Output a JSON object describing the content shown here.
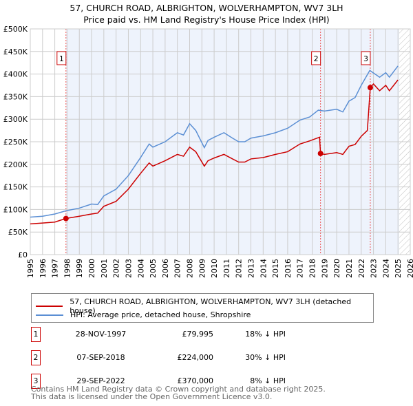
{
  "chart_data": {
    "type": "line",
    "title": "57, CHURCH ROAD, ALBRIGHTON, WOLVERHAMPTON, WV7 3LH",
    "subtitle": "Price paid vs. HM Land Registry's House Price Index (HPI)",
    "xlim": [
      1995,
      2026
    ],
    "ylim": [
      0,
      500000
    ],
    "x_ticks": [
      "1995",
      "1996",
      "1997",
      "1998",
      "1999",
      "2000",
      "2001",
      "2002",
      "2003",
      "2004",
      "2005",
      "2006",
      "2007",
      "2008",
      "2009",
      "2010",
      "2011",
      "2012",
      "2013",
      "2014",
      "2015",
      "2016",
      "2017",
      "2018",
      "2019",
      "2020",
      "2021",
      "2022",
      "2023",
      "2024",
      "2025",
      "2026"
    ],
    "y_ticks": [
      {
        "v": 0,
        "l": "£0"
      },
      {
        "v": 50000,
        "l": "£50K"
      },
      {
        "v": 100000,
        "l": "£100K"
      },
      {
        "v": 150000,
        "l": "£150K"
      },
      {
        "v": 200000,
        "l": "£200K"
      },
      {
        "v": 250000,
        "l": "£250K"
      },
      {
        "v": 300000,
        "l": "£300K"
      },
      {
        "v": 350000,
        "l": "£350K"
      },
      {
        "v": 400000,
        "l": "£400K"
      },
      {
        "v": 450000,
        "l": "£450K"
      },
      {
        "v": 500000,
        "l": "£500K"
      }
    ],
    "series": [
      {
        "name": "57, CHURCH ROAD, ALBRIGHTON, WOLVERHAMPTON, WV7 3LH (detached house)",
        "color": "#cc0000",
        "x": [
          1995,
          1996,
          1997,
          1997.9,
          1999,
          2000,
          2000.5,
          2001,
          2002,
          2003,
          2004,
          2004.7,
          2005,
          2006,
          2007,
          2007.5,
          2008,
          2008.5,
          2009.2,
          2009.5,
          2010,
          2010.8,
          2011.5,
          2012,
          2012.5,
          2013,
          2014,
          2015,
          2016,
          2017,
          2017.8,
          2018.6,
          2018.68,
          2019,
          2020,
          2020.5,
          2021,
          2021.5,
          2022,
          2022.5,
          2022.74,
          2023,
          2023.5,
          2024,
          2024.3,
          2025
        ],
        "y": [
          68000,
          70000,
          72000,
          79995,
          85000,
          90000,
          92000,
          107000,
          118000,
          145000,
          180000,
          203000,
          196000,
          208000,
          222000,
          218000,
          238000,
          228000,
          196000,
          208000,
          214000,
          222000,
          212000,
          205000,
          205000,
          212000,
          215000,
          222000,
          228000,
          245000,
          252000,
          260000,
          224000,
          222000,
          226000,
          222000,
          240000,
          244000,
          262000,
          275000,
          370000,
          378000,
          363000,
          375000,
          363000,
          387000
        ]
      },
      {
        "name": "HPI: Average price, detached house, Shropshire",
        "color": "#5b8fd4",
        "x": [
          1995,
          1996,
          1997,
          1997.9,
          1999,
          2000,
          2000.5,
          2001,
          2002,
          2003,
          2004,
          2004.7,
          2005,
          2006,
          2007,
          2007.5,
          2008,
          2008.5,
          2009.2,
          2009.5,
          2010,
          2010.8,
          2011.5,
          2012,
          2012.5,
          2013,
          2014,
          2015,
          2016,
          2017,
          2017.8,
          2018.5,
          2019,
          2020,
          2020.5,
          2021,
          2021.5,
          2022,
          2022.7,
          2023.5,
          2024,
          2024.3,
          2025
        ],
        "y": [
          83000,
          85000,
          90000,
          97000,
          103000,
          112000,
          111000,
          130000,
          145000,
          175000,
          215000,
          245000,
          238000,
          250000,
          270000,
          265000,
          290000,
          275000,
          237000,
          253000,
          260000,
          270000,
          258000,
          250000,
          250000,
          258000,
          263000,
          270000,
          280000,
          298000,
          305000,
          320000,
          318000,
          322000,
          316000,
          340000,
          348000,
          375000,
          408000,
          393000,
          403000,
          393000,
          418000
        ]
      }
    ],
    "sales": [
      {
        "id": "1",
        "x": 1997.91,
        "y": 79995,
        "date": "28-NOV-1997",
        "price": "£79,995",
        "hpi": "18% ↓ HPI"
      },
      {
        "id": "2",
        "x": 2018.68,
        "y": 224000,
        "date": "07-SEP-2018",
        "price": "£224,000",
        "hpi": "30% ↓ HPI"
      },
      {
        "id": "3",
        "x": 2022.74,
        "y": 370000,
        "date": "29-SEP-2022",
        "price": "£370,000",
        "hpi": "8% ↓ HPI"
      }
    ],
    "shaded_from": 1997.91,
    "hatched_from": 2025.1
  },
  "footer": {
    "line1": "Contains HM Land Registry data © Crown copyright and database right 2025.",
    "line2": "This data is licensed under the Open Government Licence v3.0."
  }
}
